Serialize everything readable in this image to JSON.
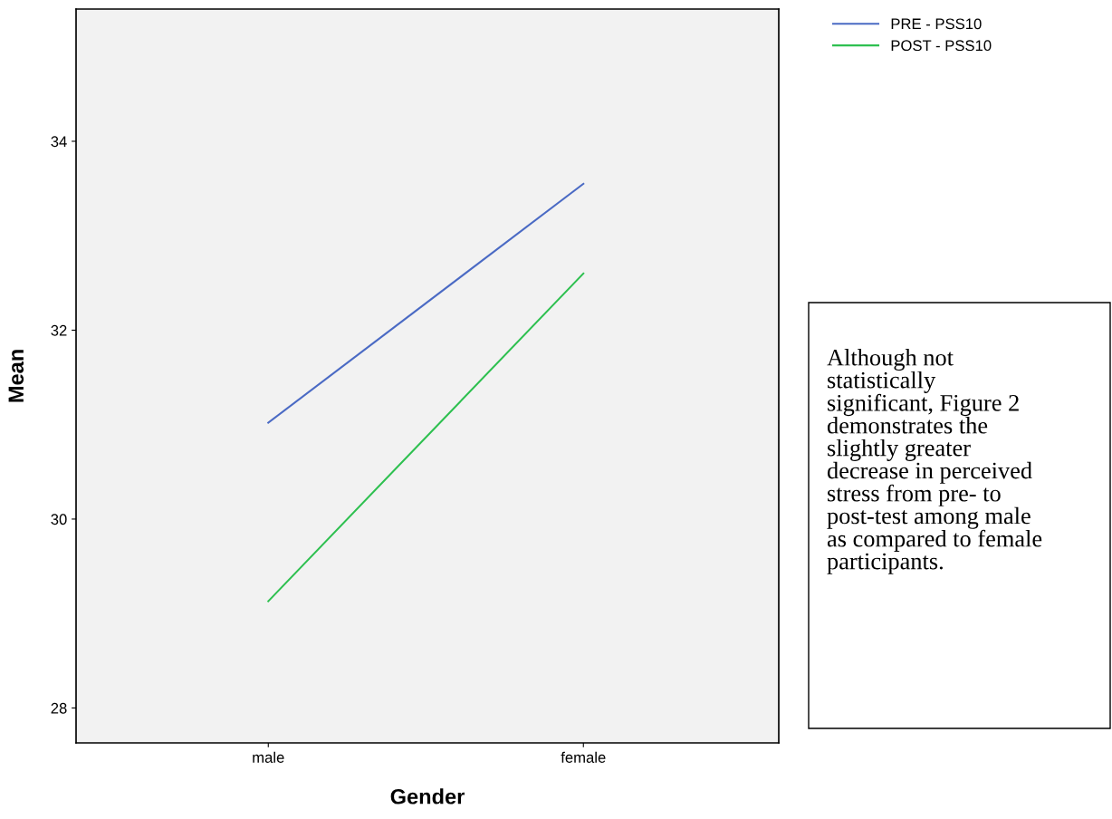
{
  "chart_data": {
    "type": "line",
    "xlabel": "Gender",
    "ylabel": "Mean",
    "categories": [
      "male",
      "female"
    ],
    "series": [
      {
        "name": "PRE - PSS10",
        "color": "#4a6ac4",
        "values": [
          31.02,
          33.55
        ]
      },
      {
        "name": "POST - PSS10",
        "color": "#2ec050",
        "values": [
          29.13,
          32.6
        ]
      }
    ],
    "ylim": [
      27.63,
      35.4
    ],
    "yticks": [
      28,
      30,
      32,
      34
    ],
    "grid": false,
    "legend": "top right",
    "marker": "none",
    "line_style": "solid",
    "annotations": [
      "Although not\nstatistically\nsignificant, Figure 2\ndemonstrates the\nslightly greater\ndecrease in perceived\nstress from pre- to\npost-test among male\nas compared to female\nparticipants."
    ]
  }
}
